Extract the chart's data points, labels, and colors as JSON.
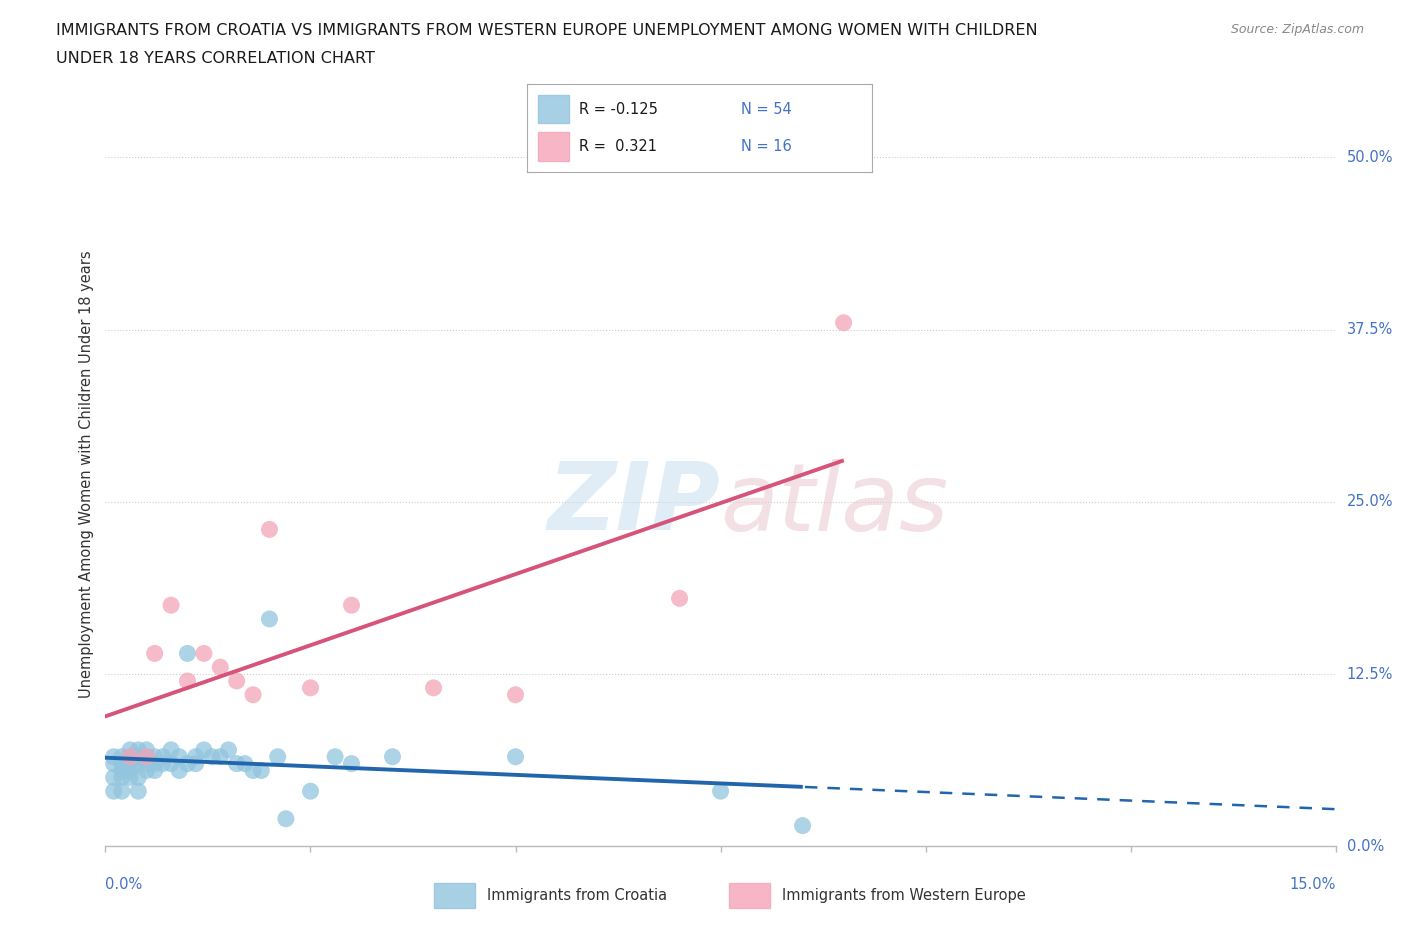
{
  "title_line1": "IMMIGRANTS FROM CROATIA VS IMMIGRANTS FROM WESTERN EUROPE UNEMPLOYMENT AMONG WOMEN WITH CHILDREN",
  "title_line2": "UNDER 18 YEARS CORRELATION CHART",
  "source": "Source: ZipAtlas.com",
  "ylabel": "Unemployment Among Women with Children Under 18 years",
  "ytick_values": [
    0.0,
    0.125,
    0.25,
    0.375,
    0.5
  ],
  "ytick_labels": [
    "0.0%",
    "12.5%",
    "25.0%",
    "37.5%",
    "50.0%"
  ],
  "xlim": [
    0.0,
    0.15
  ],
  "ylim": [
    0.0,
    0.54
  ],
  "croatia_color": "#92c5de",
  "croatia_line_color": "#2166ac",
  "western_color": "#f4a4b8",
  "western_line_color": "#d6537a",
  "croatia_R": -0.125,
  "croatia_N": 54,
  "western_R": 0.321,
  "western_N": 16,
  "croatia_label": "Immigrants from Croatia",
  "western_label": "Immigrants from Western Europe",
  "croatia_scatter_x": [
    0.001,
    0.001,
    0.001,
    0.001,
    0.002,
    0.002,
    0.002,
    0.002,
    0.002,
    0.003,
    0.003,
    0.003,
    0.003,
    0.003,
    0.004,
    0.004,
    0.004,
    0.004,
    0.004,
    0.005,
    0.005,
    0.005,
    0.005,
    0.006,
    0.006,
    0.006,
    0.007,
    0.007,
    0.008,
    0.008,
    0.009,
    0.009,
    0.01,
    0.01,
    0.011,
    0.011,
    0.012,
    0.013,
    0.014,
    0.015,
    0.016,
    0.017,
    0.018,
    0.019,
    0.02,
    0.021,
    0.022,
    0.025,
    0.028,
    0.03,
    0.035,
    0.05,
    0.075,
    0.085
  ],
  "croatia_scatter_y": [
    0.04,
    0.05,
    0.06,
    0.065,
    0.04,
    0.05,
    0.055,
    0.06,
    0.065,
    0.05,
    0.055,
    0.06,
    0.065,
    0.07,
    0.04,
    0.05,
    0.06,
    0.065,
    0.07,
    0.055,
    0.06,
    0.065,
    0.07,
    0.055,
    0.06,
    0.065,
    0.06,
    0.065,
    0.06,
    0.07,
    0.055,
    0.065,
    0.06,
    0.14,
    0.06,
    0.065,
    0.07,
    0.065,
    0.065,
    0.07,
    0.06,
    0.06,
    0.055,
    0.055,
    0.165,
    0.065,
    0.02,
    0.04,
    0.065,
    0.06,
    0.065,
    0.065,
    0.04,
    0.015
  ],
  "western_scatter_x": [
    0.003,
    0.005,
    0.006,
    0.008,
    0.01,
    0.012,
    0.014,
    0.016,
    0.018,
    0.02,
    0.025,
    0.03,
    0.04,
    0.05,
    0.07,
    0.09
  ],
  "western_scatter_y": [
    0.065,
    0.065,
    0.14,
    0.175,
    0.12,
    0.14,
    0.13,
    0.12,
    0.11,
    0.23,
    0.115,
    0.175,
    0.115,
    0.11,
    0.18,
    0.38
  ]
}
